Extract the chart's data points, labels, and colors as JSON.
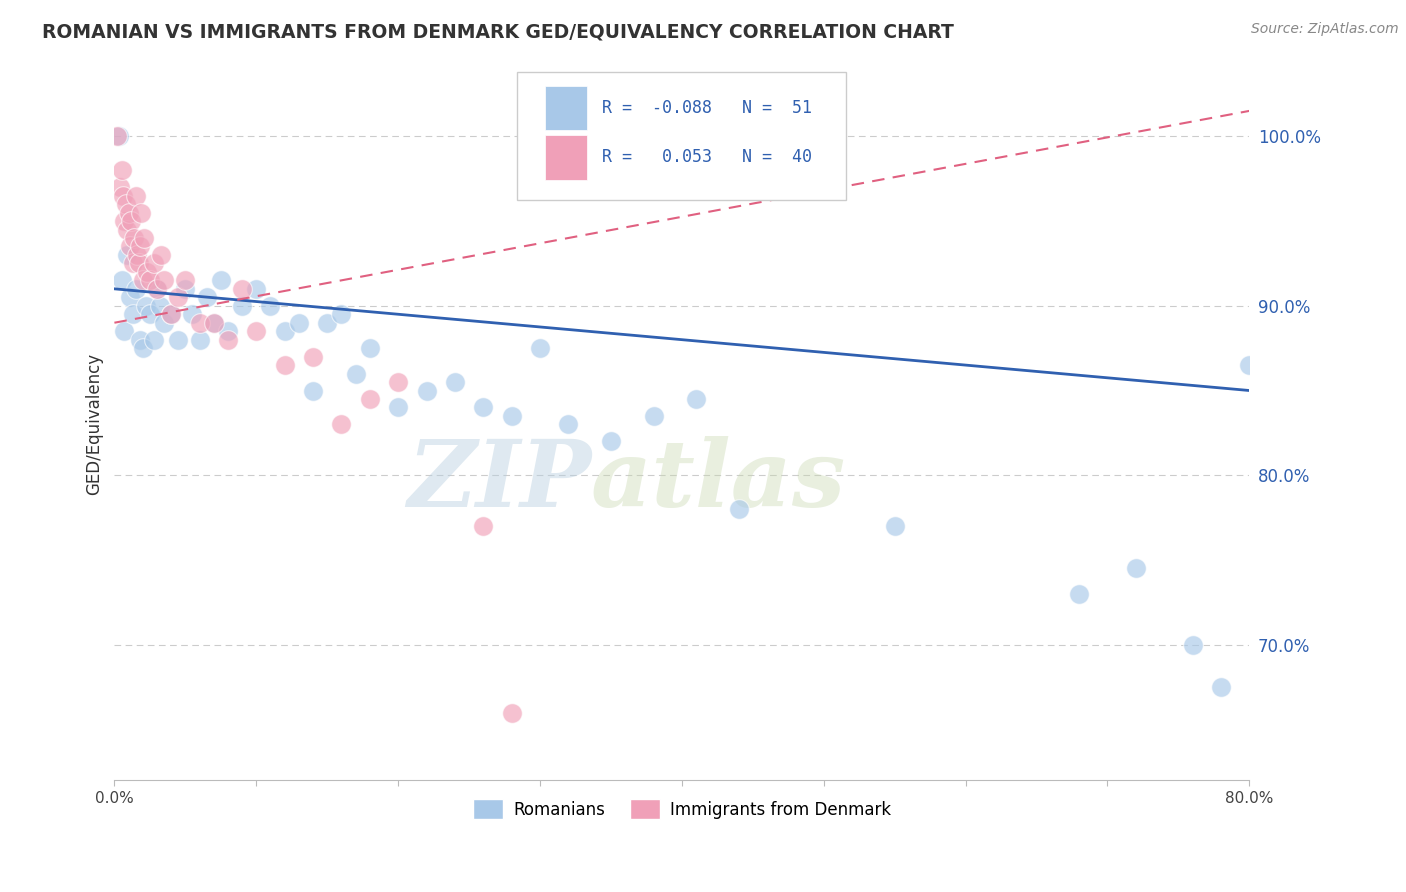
{
  "title": "ROMANIAN VS IMMIGRANTS FROM DENMARK GED/EQUIVALENCY CORRELATION CHART",
  "source": "Source: ZipAtlas.com",
  "ylabel": "GED/Equivalency",
  "xlim": [
    0.0,
    80.0
  ],
  "ylim": [
    62.0,
    104.0
  ],
  "yticks": [
    70.0,
    80.0,
    90.0,
    100.0
  ],
  "ytick_labels": [
    "70.0%",
    "80.0%",
    "90.0%",
    "100.0%"
  ],
  "legend_blue_label": "Romanians",
  "legend_pink_label": "Immigrants from Denmark",
  "R_blue": -0.088,
  "N_blue": 51,
  "R_pink": 0.053,
  "N_pink": 40,
  "blue_color": "#a8c8e8",
  "pink_color": "#f0a0b8",
  "blue_line_color": "#3060b0",
  "pink_line_color": "#e06080",
  "blue_line_y0": 91.0,
  "blue_line_y1": 85.0,
  "pink_line_y0": 89.0,
  "pink_line_y1": 101.5,
  "background_color": "#ffffff",
  "blue_points_x": [
    0.3,
    0.5,
    0.7,
    0.9,
    1.1,
    1.3,
    1.5,
    1.8,
    2.0,
    2.2,
    2.5,
    2.8,
    3.0,
    3.2,
    3.5,
    4.0,
    4.5,
    5.0,
    5.5,
    6.0,
    6.5,
    7.0,
    7.5,
    8.0,
    9.0,
    10.0,
    11.0,
    12.0,
    13.0,
    14.0,
    15.0,
    16.0,
    17.0,
    18.0,
    20.0,
    22.0,
    24.0,
    26.0,
    28.0,
    30.0,
    32.0,
    35.0,
    38.0,
    41.0,
    44.0,
    55.0,
    68.0,
    72.0,
    76.0,
    78.0,
    80.0
  ],
  "blue_points_y": [
    100.0,
    91.5,
    88.5,
    93.0,
    90.5,
    89.5,
    91.0,
    88.0,
    87.5,
    90.0,
    89.5,
    88.0,
    91.0,
    90.0,
    89.0,
    89.5,
    88.0,
    91.0,
    89.5,
    88.0,
    90.5,
    89.0,
    91.5,
    88.5,
    90.0,
    91.0,
    90.0,
    88.5,
    89.0,
    85.0,
    89.0,
    89.5,
    86.0,
    87.5,
    84.0,
    85.0,
    85.5,
    84.0,
    83.5,
    87.5,
    83.0,
    82.0,
    83.5,
    84.5,
    78.0,
    77.0,
    73.0,
    74.5,
    70.0,
    67.5,
    86.5
  ],
  "pink_points_x": [
    0.2,
    0.4,
    0.5,
    0.6,
    0.7,
    0.8,
    0.9,
    1.0,
    1.1,
    1.2,
    1.3,
    1.4,
    1.5,
    1.6,
    1.7,
    1.8,
    1.9,
    2.0,
    2.1,
    2.3,
    2.5,
    2.8,
    3.0,
    3.3,
    3.5,
    4.0,
    4.5,
    5.0,
    6.0,
    7.0,
    8.0,
    9.0,
    10.0,
    12.0,
    14.0,
    16.0,
    18.0,
    20.0,
    26.0,
    28.0
  ],
  "pink_points_y": [
    100.0,
    97.0,
    98.0,
    96.5,
    95.0,
    96.0,
    94.5,
    95.5,
    93.5,
    95.0,
    92.5,
    94.0,
    96.5,
    93.0,
    92.5,
    93.5,
    95.5,
    91.5,
    94.0,
    92.0,
    91.5,
    92.5,
    91.0,
    93.0,
    91.5,
    89.5,
    90.5,
    91.5,
    89.0,
    89.0,
    88.0,
    91.0,
    88.5,
    86.5,
    87.0,
    83.0,
    84.5,
    85.5,
    77.0,
    66.0
  ]
}
